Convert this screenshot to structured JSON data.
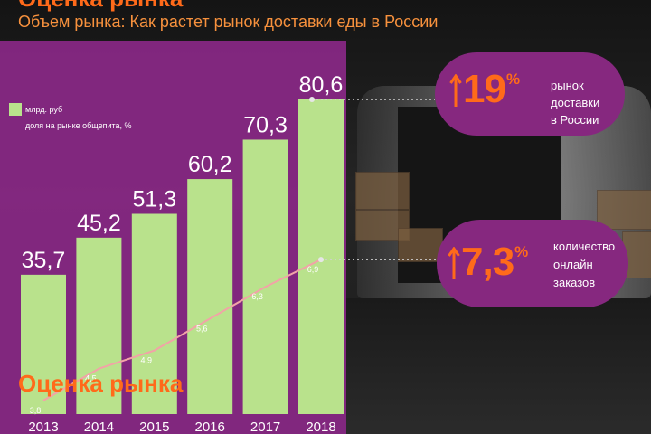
{
  "header": {
    "title": "Оценка рынка",
    "subtitle": "Объем рынка: Как растет рынок доставки еды в России"
  },
  "colors": {
    "accent": "#ff6a1a",
    "subtitle": "#f7913d",
    "panel": "#8a2887",
    "pill": "#86287f",
    "bars": "#b9e28c",
    "line": "#f2a3a7",
    "connector": "#cfcfcf"
  },
  "chart_data": {
    "type": "bar",
    "categories": [
      "2013",
      "2014",
      "2015",
      "2016",
      "2017",
      "2018"
    ],
    "series": [
      {
        "name": "млрд. руб",
        "type": "bar",
        "values": [
          35.7,
          45.2,
          51.3,
          60.2,
          70.3,
          80.6
        ],
        "labels": [
          "35,7",
          "45,2",
          "51,3",
          "60,2",
          "70,3",
          "80,6"
        ]
      },
      {
        "name": "доля на рынке общепита, %",
        "type": "line",
        "axis": "secondary",
        "values": [
          3.8,
          4.5,
          4.9,
          5.6,
          6.3,
          6.9
        ],
        "labels": [
          "3,8",
          "4,5",
          "4,9",
          "5,6",
          "6,3",
          "6,9"
        ]
      }
    ],
    "legend": {
      "entries": [
        "млрд. руб",
        "доля на рынке общепита, %"
      ],
      "placement": "top-left"
    },
    "ylim": [
      0,
      85
    ],
    "y2lim": [
      3.5,
      10.8
    ],
    "grid": false
  },
  "highlights": [
    {
      "icon": "arrow-up-icon",
      "value": "19",
      "unit": "%",
      "lines": [
        "рынок",
        "доставки",
        "в России"
      ]
    },
    {
      "icon": "arrow-up-icon",
      "value": "7,3",
      "unit": "%",
      "lines": [
        "количество",
        "онлайн",
        "заказов"
      ]
    }
  ]
}
